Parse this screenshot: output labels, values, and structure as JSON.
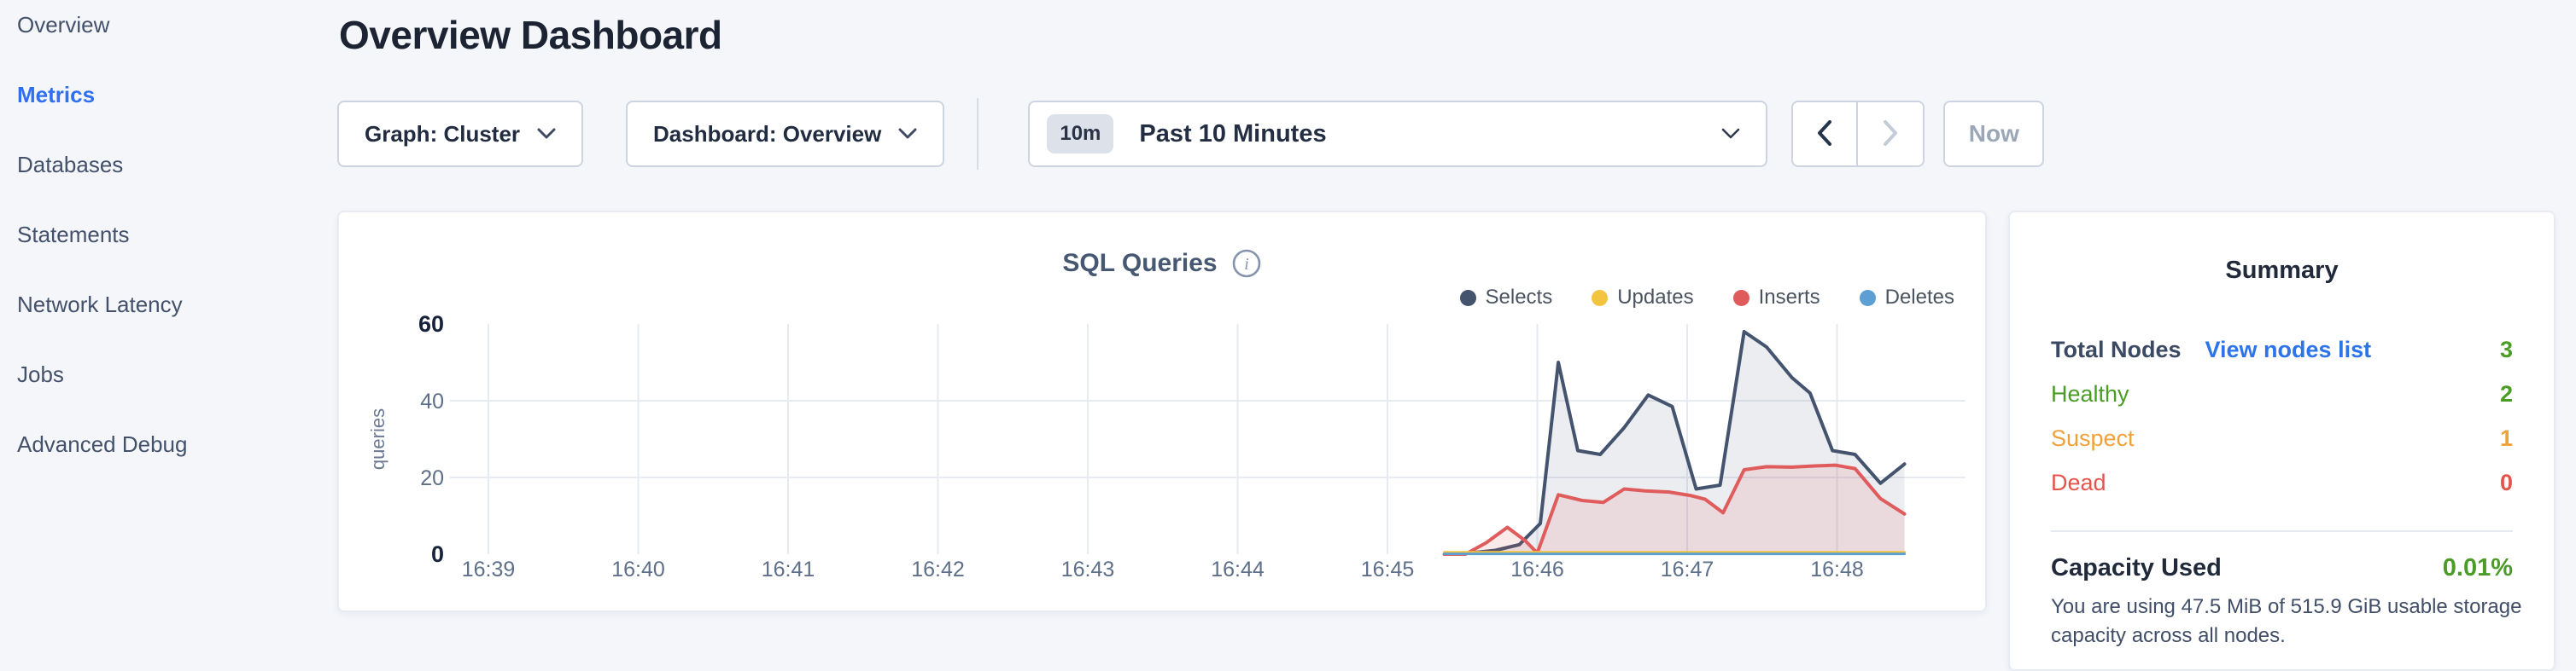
{
  "sidebar": {
    "items": [
      {
        "label": "Overview",
        "active": false
      },
      {
        "label": "Metrics",
        "active": true
      },
      {
        "label": "Databases",
        "active": false
      },
      {
        "label": "Statements",
        "active": false
      },
      {
        "label": "Network Latency",
        "active": false
      },
      {
        "label": "Jobs",
        "active": false
      },
      {
        "label": "Advanced Debug",
        "active": false
      }
    ]
  },
  "header": {
    "title": "Overview Dashboard"
  },
  "controls": {
    "graph_selector": {
      "label": "Graph: Cluster"
    },
    "dashboard_selector": {
      "label": "Dashboard: Overview"
    },
    "time_picker": {
      "badge": "10m",
      "label": "Past 10 Minutes"
    },
    "prev_button": "previous time window",
    "next_button": "next time window",
    "now_button": "Now"
  },
  "chart_card": {
    "title": "SQL Queries",
    "info_icon": "i"
  },
  "chart_data": {
    "type": "area",
    "title": "SQL Queries",
    "ylabel": "queries",
    "ylim": [
      0,
      60
    ],
    "y_ticks": [
      0,
      20,
      40,
      60
    ],
    "x_ticks": [
      "16:39",
      "16:40",
      "16:41",
      "16:42",
      "16:43",
      "16:44",
      "16:45",
      "16:46",
      "16:47",
      "16:48"
    ],
    "x_unit": "minutes after 16:39",
    "grid": true,
    "legend_position": "top-right",
    "series": [
      {
        "name": "Selects",
        "color": "#44536e",
        "fill": "rgba(68,83,110,0.10)",
        "width": 4,
        "points": [
          [
            6.38,
            0
          ],
          [
            6.55,
            0.3
          ],
          [
            6.72,
            1
          ],
          [
            6.88,
            2.5
          ],
          [
            7.02,
            8
          ],
          [
            7.14,
            50
          ],
          [
            7.27,
            27
          ],
          [
            7.42,
            26
          ],
          [
            7.58,
            33
          ],
          [
            7.74,
            41.5
          ],
          [
            7.9,
            38.5
          ],
          [
            8.06,
            17
          ],
          [
            8.22,
            18
          ],
          [
            8.38,
            58
          ],
          [
            8.53,
            54
          ],
          [
            8.7,
            46
          ],
          [
            8.82,
            42
          ],
          [
            8.97,
            27
          ],
          [
            9.12,
            26
          ],
          [
            9.29,
            18.5
          ],
          [
            9.45,
            23.5
          ]
        ]
      },
      {
        "name": "Updates",
        "color": "#f2c440",
        "fill": null,
        "width": 3,
        "points": [
          [
            6.38,
            0.5
          ],
          [
            9.45,
            0.5
          ]
        ]
      },
      {
        "name": "Inserts",
        "color": "#e05c5c",
        "fill": "rgba(226,96,96,0.13)",
        "width": 4,
        "points": [
          [
            6.38,
            0
          ],
          [
            6.52,
            0
          ],
          [
            6.66,
            3
          ],
          [
            6.8,
            7
          ],
          [
            6.92,
            3.5
          ],
          [
            7.0,
            0.3
          ],
          [
            7.14,
            15.5
          ],
          [
            7.3,
            14
          ],
          [
            7.44,
            13.5
          ],
          [
            7.58,
            17
          ],
          [
            7.72,
            16.5
          ],
          [
            7.88,
            16.2
          ],
          [
            8.02,
            15.3
          ],
          [
            8.12,
            14.3
          ],
          [
            8.24,
            10.8
          ],
          [
            8.38,
            22
          ],
          [
            8.53,
            22.8
          ],
          [
            8.7,
            22.7
          ],
          [
            8.85,
            23
          ],
          [
            8.99,
            23.2
          ],
          [
            9.12,
            22.3
          ],
          [
            9.29,
            14.5
          ],
          [
            9.45,
            10.5
          ]
        ]
      },
      {
        "name": "Deletes",
        "color": "#5d9fd3",
        "fill": null,
        "width": 3,
        "points": [
          [
            6.38,
            0.1
          ],
          [
            9.45,
            0.1
          ]
        ]
      }
    ]
  },
  "summary": {
    "title": "Summary",
    "rows": [
      {
        "label": "Total Nodes",
        "link": "View nodes list",
        "value": "3",
        "label_color": "#3c4963",
        "value_color": "#4a9c27"
      },
      {
        "label": "Healthy",
        "value": "2",
        "label_color": "#4a9c27",
        "value_color": "#4a9c27"
      },
      {
        "label": "Suspect",
        "value": "1",
        "label_color": "#f0a13a",
        "value_color": "#f0a13a"
      },
      {
        "label": "Dead",
        "value": "0",
        "label_color": "#e5534b",
        "value_color": "#e5534b"
      }
    ],
    "capacity": {
      "label": "Capacity Used",
      "value": "0.01%",
      "value_color": "#4a9c27",
      "description": "You are using 47.5 MiB of 515.9 GiB usable storage capacity across all nodes."
    }
  },
  "colors": {
    "accent_blue": "#2f6ff2",
    "link_blue": "#2d74e8",
    "healthy_green": "#4a9c27",
    "suspect_orange": "#f0a13a",
    "dead_red": "#e5534b",
    "page_background": "#f4f6fa",
    "grid_line": "#e6eaf1"
  }
}
